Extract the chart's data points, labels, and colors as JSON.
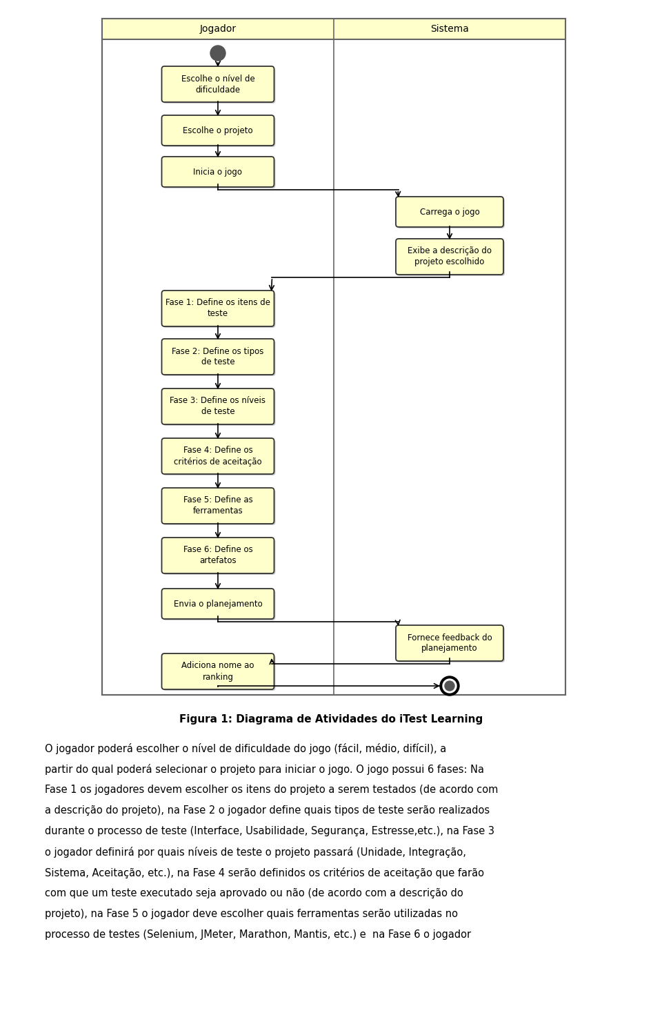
{
  "bg_color": "#ffffff",
  "box_fill": "#ffffcc",
  "box_edge": "#333333",
  "header_bg": "#ffffcc",
  "jogador_label": "Jogador",
  "sistema_label": "Sistema",
  "figure_caption": "Figura 1: Diagrama de Atividades do iTest Learning",
  "lines_para": [
    "O jogador poderá escolher o nível de dificuldade do jogo (fácil, médio, difícil), a",
    "partir do qual poderá selecionar o projeto para iniciar o jogo. O jogo possui 6 fases: Na",
    "Fase 1 os jogadores devem escolher os itens do projeto a serem testados (de acordo com",
    "a descrição do projeto), na Fase 2 o jogador define quais tipos de teste serão realizados",
    "durante o processo de teste (Interface, Usabilidade, Segurança, Estresse,etc.), na Fase 3",
    "o jogador definirá por quais níveis de teste o projeto passará (Unidade, Integração,",
    "Sistema, Aceitação, etc.), na Fase 4 serão definidos os critérios de aceitação que farão",
    "com que um teste executado seja aprovado ou não (de acordo com a descrição do",
    "projeto), na Fase 5 o jogador deve escolher quais ferramentas serão utilizadas no",
    "processo de testes (Selenium, JMeter, Marathon, Mantis, etc.) e  na Fase 6 o jogador"
  ]
}
